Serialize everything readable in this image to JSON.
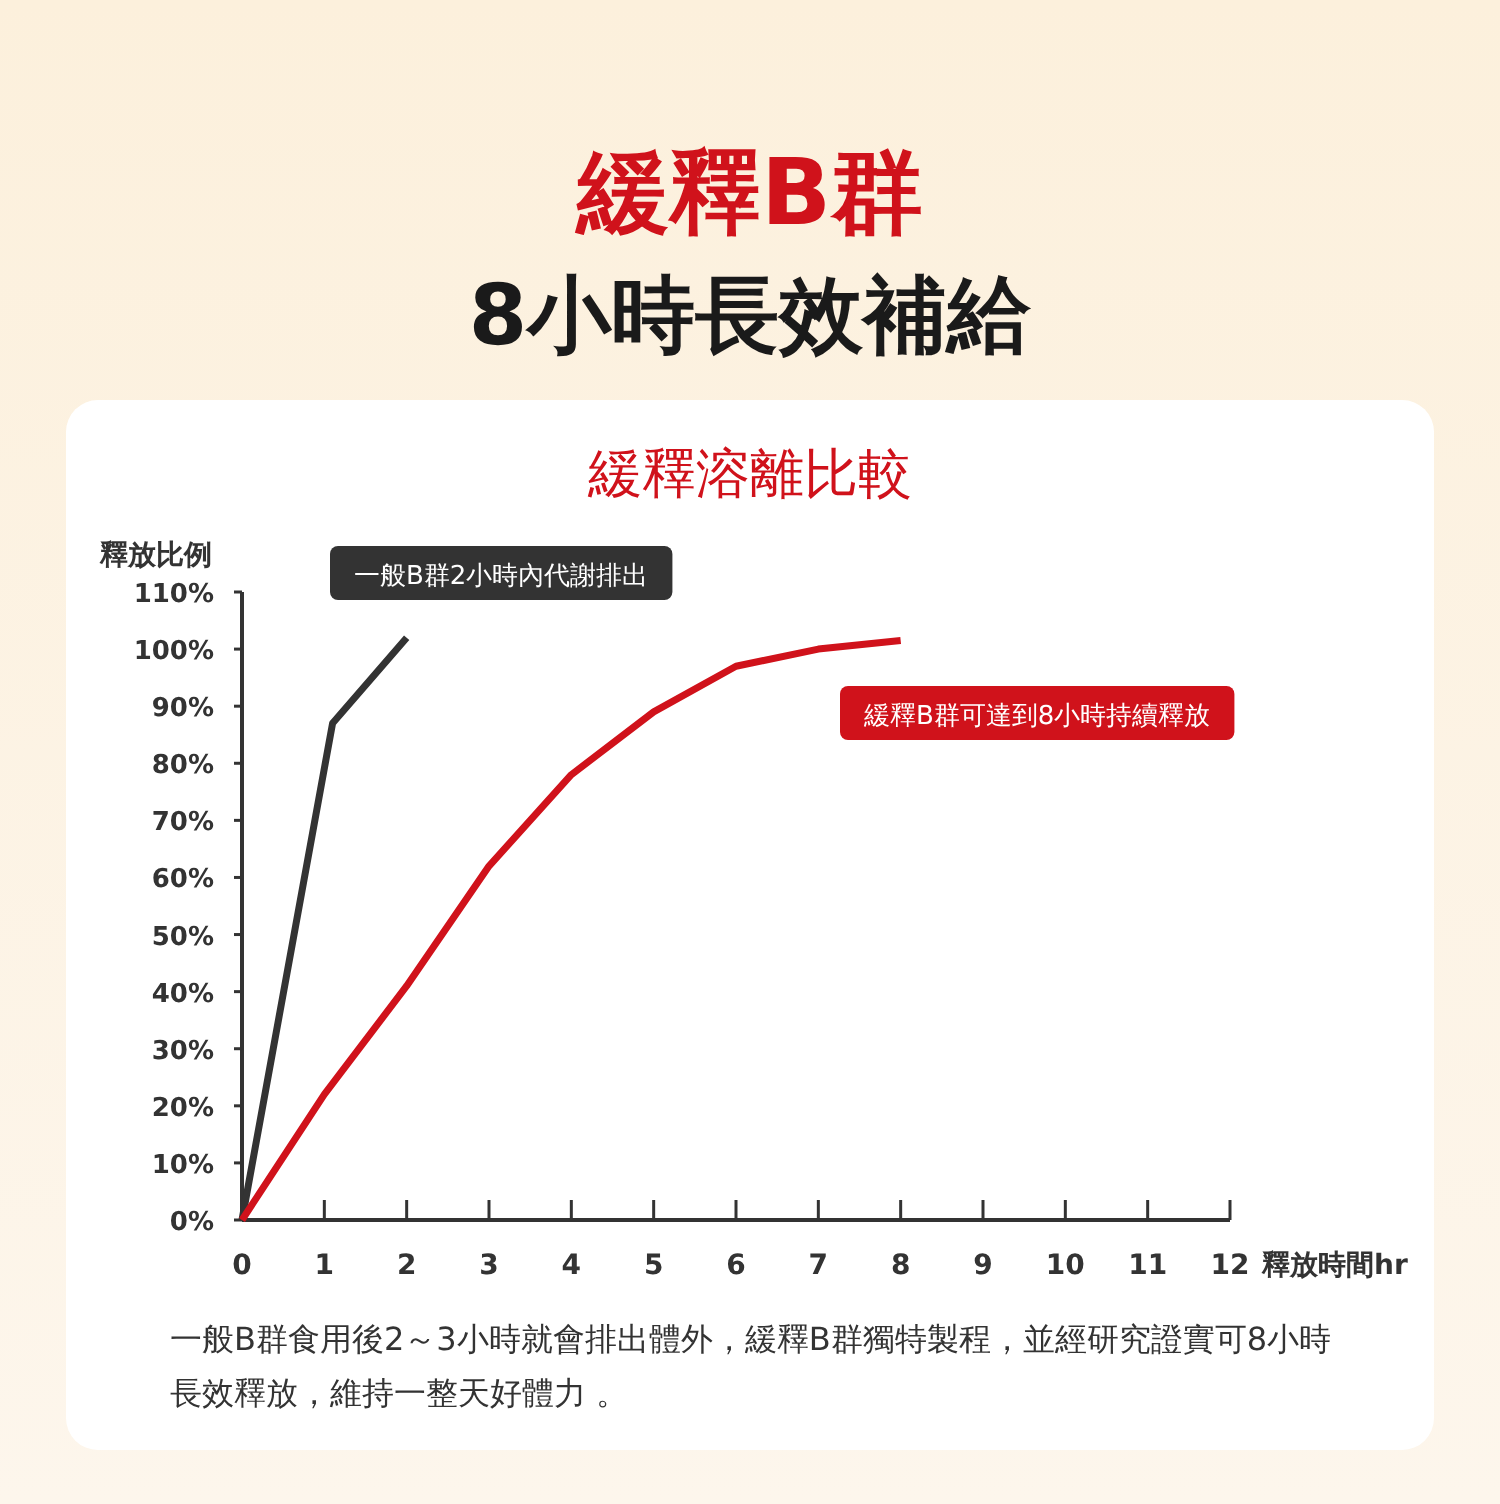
{
  "chart_data": {
    "type": "line",
    "title": "緩釋B群",
    "subtitle": "8小時長效補給",
    "annotations": [
      "緩釋溶離比較",
      "一般B群食用後2～3小時就會排出體外，緩釋B群獨特製程，並經研究證實可8小時長效釋放，維持一整天好體力 。"
    ],
    "xlabel": "釋放時間hr",
    "ylabel": "釋放比例",
    "series": [
      {
        "name": "一般B群2小時內代謝排出",
        "color": "#333333",
        "x": [
          0,
          1.1,
          2
        ],
        "values": [
          0,
          87,
          102
        ]
      },
      {
        "name": "緩釋B群可達到8小時持續釋放",
        "color": "#d0121b",
        "x": [
          0,
          1,
          2,
          3,
          4,
          5,
          6,
          7,
          8
        ],
        "values": [
          0,
          22,
          41,
          62,
          78,
          89,
          97,
          100,
          101.5
        ]
      }
    ],
    "xlim": [
      0,
      12
    ],
    "xticks": [
      0,
      1,
      2,
      3,
      4,
      5,
      6,
      7,
      8,
      9,
      10,
      11,
      12
    ],
    "ylim": [
      0,
      110
    ],
    "yticks": [
      {
        "value": 0,
        "label": "0%"
      },
      {
        "value": 10,
        "label": "10%"
      },
      {
        "value": 20,
        "label": "20%"
      },
      {
        "value": 30,
        "label": "30%"
      },
      {
        "value": 40,
        "label": "40%"
      },
      {
        "value": 50,
        "label": "50%"
      },
      {
        "value": 60,
        "label": "60%"
      },
      {
        "value": 70,
        "label": "70%"
      },
      {
        "value": 80,
        "label": "80%"
      },
      {
        "value": 90,
        "label": "90%"
      },
      {
        "value": 100,
        "label": "100%"
      },
      {
        "value": 110,
        "label": "110%"
      }
    ],
    "grid": false,
    "legend": "top",
    "marker": "none",
    "line_style": "solid"
  }
}
